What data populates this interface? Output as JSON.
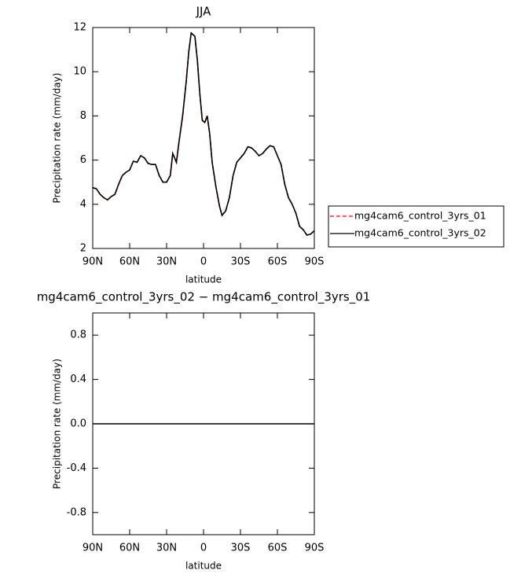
{
  "chart_data": [
    {
      "type": "line",
      "title": "JJA",
      "xlabel": "latitude",
      "ylabel": "Precipitation rate (mm/day)",
      "xlim": [
        90,
        -90
      ],
      "xticks": [
        {
          "value": 90,
          "label": "90N"
        },
        {
          "value": 60,
          "label": "60N"
        },
        {
          "value": 30,
          "label": "30N"
        },
        0,
        {
          "value": -30,
          "label": "30S"
        },
        {
          "value": -60,
          "label": "60S"
        },
        {
          "value": -90,
          "label": "90S"
        }
      ],
      "ylim": [
        2,
        12
      ],
      "yticks": [
        2,
        4,
        6,
        8,
        10,
        12
      ],
      "legend": "right",
      "x": [
        90,
        87,
        84,
        81,
        78,
        75,
        72,
        69,
        66,
        63,
        60,
        57,
        54,
        51,
        48,
        45,
        42,
        39,
        36,
        33,
        30,
        27,
        25,
        22,
        20,
        17,
        14,
        12,
        10,
        7,
        5,
        3,
        1,
        -1,
        -3,
        -5,
        -7,
        -10,
        -13,
        -15,
        -18,
        -21,
        -24,
        -27,
        -30,
        -33,
        -36,
        -39,
        -42,
        -45,
        -48,
        -51,
        -54,
        -57,
        -60,
        -63,
        -66,
        -69,
        -72,
        -75,
        -78,
        -81,
        -84,
        -87,
        -90
      ],
      "series": [
        {
          "name": "mg4cam6_control_3yrs_01",
          "color": "#ff0000",
          "dashed": true,
          "values": [
            4.75,
            4.7,
            4.45,
            4.3,
            4.2,
            4.35,
            4.45,
            4.9,
            5.3,
            5.45,
            5.55,
            5.95,
            5.9,
            6.2,
            6.1,
            5.85,
            5.8,
            5.8,
            5.3,
            5.0,
            5.0,
            5.3,
            6.3,
            5.9,
            6.8,
            8.0,
            9.6,
            10.9,
            11.75,
            11.6,
            10.5,
            9.0,
            7.8,
            7.7,
            8.0,
            7.2,
            5.9,
            4.8,
            3.9,
            3.5,
            3.7,
            4.3,
            5.3,
            5.9,
            6.1,
            6.3,
            6.6,
            6.55,
            6.4,
            6.2,
            6.3,
            6.5,
            6.65,
            6.6,
            6.2,
            5.8,
            4.9,
            4.3,
            4.0,
            3.6,
            3.0,
            2.85,
            2.6,
            2.65,
            2.8
          ]
        },
        {
          "name": "mg4cam6_control_3yrs_02",
          "color": "#000000",
          "dashed": false,
          "values": [
            4.75,
            4.7,
            4.45,
            4.3,
            4.2,
            4.35,
            4.45,
            4.9,
            5.3,
            5.45,
            5.55,
            5.95,
            5.9,
            6.2,
            6.1,
            5.85,
            5.8,
            5.8,
            5.3,
            5.0,
            5.0,
            5.3,
            6.3,
            5.9,
            6.8,
            8.0,
            9.6,
            10.9,
            11.75,
            11.6,
            10.5,
            9.0,
            7.8,
            7.7,
            8.0,
            7.2,
            5.9,
            4.8,
            3.9,
            3.5,
            3.7,
            4.3,
            5.3,
            5.9,
            6.1,
            6.3,
            6.6,
            6.55,
            6.4,
            6.2,
            6.3,
            6.5,
            6.65,
            6.6,
            6.2,
            5.8,
            4.9,
            4.3,
            4.0,
            3.6,
            3.0,
            2.85,
            2.6,
            2.65,
            2.8
          ]
        }
      ]
    },
    {
      "type": "line",
      "title": "mg4cam6_control_3yrs_02 − mg4cam6_control_3yrs_01",
      "xlabel": "latitude",
      "ylabel": "Precipitation rate (mm/day)",
      "xlim": [
        90,
        -90
      ],
      "xticks": [
        {
          "value": 90,
          "label": "90N"
        },
        {
          "value": 60,
          "label": "60N"
        },
        {
          "value": 30,
          "label": "30N"
        },
        0,
        {
          "value": -30,
          "label": "30S"
        },
        {
          "value": -60,
          "label": "60S"
        },
        {
          "value": -90,
          "label": "90S"
        }
      ],
      "ylim": [
        -1,
        1
      ],
      "yticks": [
        -0.8,
        -0.4,
        {
          "value": 0,
          "label": "0.0"
        },
        0.4,
        0.8
      ],
      "x": [
        90,
        -90
      ],
      "series": [
        {
          "color": "#000000",
          "dashed": false,
          "values": [
            0,
            0
          ]
        }
      ]
    }
  ]
}
